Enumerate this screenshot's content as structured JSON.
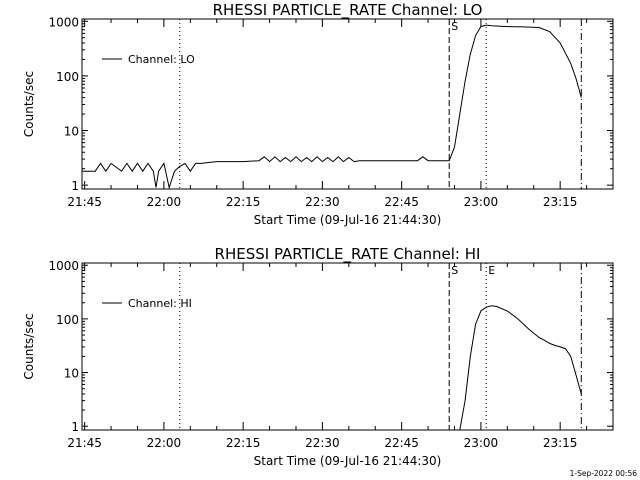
{
  "footer_stamp": "1-Sep-2022 00:56",
  "chart_data": [
    {
      "type": "line",
      "title": "RHESSI PARTICLE_RATE Channel: LO",
      "xlabel": "Start Time (09-Jul-16 21:44:30)",
      "ylabel": "Counts/sec",
      "y_scale": "log",
      "ylim": [
        0.85,
        1100
      ],
      "xlim": [
        "21:44:30",
        "23:25:00"
      ],
      "x_ticks": [
        "21:45",
        "22:00",
        "22:15",
        "22:30",
        "22:45",
        "23:00",
        "23:15"
      ],
      "y_ticks": [
        "1",
        "10",
        "100",
        "1000"
      ],
      "legend": {
        "label": "Channel: LO",
        "position": "top-left"
      },
      "markers": [
        {
          "time": "22:03",
          "style": "dotted",
          "label": ""
        },
        {
          "time": "22:54",
          "style": "dashed",
          "label": "S"
        },
        {
          "time": "23:01",
          "style": "dotted",
          "label": ""
        },
        {
          "time": "23:19",
          "style": "dash-dot",
          "label": ""
        }
      ],
      "series": [
        {
          "name": "Channel: LO",
          "x": [
            "21:44:30",
            "21:47",
            "21:48",
            "21:49",
            "21:50",
            "21:52",
            "21:53",
            "21:54",
            "21:55",
            "21:56",
            "21:57",
            "21:58",
            "21:58:30",
            "21:59",
            "22:00",
            "22:01",
            "22:02",
            "22:03",
            "22:04",
            "22:05",
            "22:06",
            "22:07",
            "22:10",
            "22:13",
            "22:15",
            "22:18",
            "22:19",
            "22:20",
            "22:21",
            "22:22",
            "22:23",
            "22:24",
            "22:25",
            "22:26",
            "22:27",
            "22:28",
            "22:29",
            "22:30",
            "22:31",
            "22:32",
            "22:33",
            "22:34",
            "22:35",
            "22:36",
            "22:37",
            "22:40",
            "22:45",
            "22:48",
            "22:49",
            "22:50",
            "22:52",
            "22:53",
            "22:54",
            "22:55",
            "22:56",
            "22:57",
            "22:58",
            "22:59",
            "23:00",
            "23:01",
            "23:02",
            "23:05",
            "23:08",
            "23:11",
            "23:13",
            "23:15",
            "23:17",
            "23:18",
            "23:19"
          ],
          "y": [
            1.8,
            1.8,
            2.5,
            1.8,
            2.5,
            1.8,
            2.5,
            1.8,
            2.5,
            1.8,
            2.5,
            1.8,
            0.9,
            1.8,
            2.5,
            0.9,
            1.8,
            2.2,
            2.5,
            1.8,
            2.5,
            2.5,
            2.7,
            2.7,
            2.7,
            2.8,
            3.3,
            2.7,
            3.3,
            2.7,
            3.2,
            2.7,
            3.3,
            2.7,
            3.2,
            2.7,
            3.3,
            2.7,
            3.2,
            2.7,
            3.3,
            2.7,
            3.2,
            2.7,
            2.8,
            2.8,
            2.8,
            2.8,
            3.3,
            2.8,
            2.8,
            2.8,
            2.8,
            5,
            20,
            80,
            250,
            550,
            800,
            850,
            830,
            800,
            790,
            770,
            650,
            400,
            170,
            90,
            40
          ]
        }
      ]
    },
    {
      "type": "line",
      "title": "RHESSI PARTICLE_RATE Channel: HI",
      "xlabel": "Start Time (09-Jul-16 21:44:30)",
      "ylabel": "Counts/sec",
      "y_scale": "log",
      "ylim": [
        0.85,
        1100
      ],
      "xlim": [
        "21:44:30",
        "23:25:00"
      ],
      "x_ticks": [
        "21:45",
        "22:00",
        "22:15",
        "22:30",
        "22:45",
        "23:00",
        "23:15"
      ],
      "y_ticks": [
        "1",
        "10",
        "100",
        "1000"
      ],
      "legend": {
        "label": "Channel: HI",
        "position": "top-left"
      },
      "markers": [
        {
          "time": "22:03",
          "style": "dotted",
          "label": ""
        },
        {
          "time": "22:54",
          "style": "dashed",
          "label": "S"
        },
        {
          "time": "23:01",
          "style": "dotted",
          "label": "E"
        },
        {
          "time": "23:19",
          "style": "dash-dot",
          "label": ""
        }
      ],
      "series": [
        {
          "name": "Channel: HI",
          "x": [
            "22:56",
            "22:57",
            "22:58",
            "22:59",
            "23:00",
            "23:01",
            "23:02",
            "23:03",
            "23:05",
            "23:07",
            "23:09",
            "23:11",
            "23:12",
            "23:13",
            "23:14",
            "23:15",
            "23:16",
            "23:17",
            "23:18",
            "23:19"
          ],
          "y": [
            0.85,
            3,
            20,
            80,
            140,
            165,
            175,
            170,
            140,
            100,
            65,
            45,
            40,
            35,
            32,
            30,
            28,
            20,
            9,
            4
          ]
        }
      ]
    }
  ]
}
